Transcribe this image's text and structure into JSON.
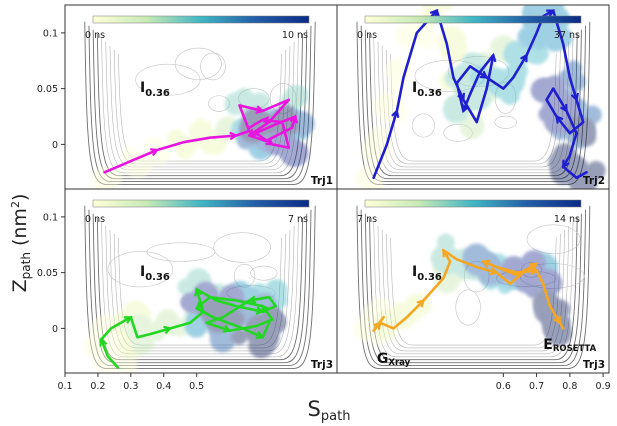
{
  "figure": {
    "ylabel_main": "Z",
    "ylabel_sub": "path",
    "ylabel_unit": " (nm",
    "ylabel_sup": "2",
    "ylabel_close": ")",
    "xlabel_main": "S",
    "xlabel_sub": "path",
    "xticks": [
      "0.1",
      "0.2",
      "0.3",
      "0.4",
      "0.5",
      "0.6",
      "0.7",
      "0.8",
      "0.9"
    ],
    "yticks": [
      "0.1",
      "0.05",
      "0"
    ]
  },
  "chart_data": [
    {
      "type": "line",
      "panel": "top-left",
      "series": [
        {
          "name": "Trj1",
          "color": "#e815e0",
          "x": [
            0.22,
            0.3,
            0.38,
            0.46,
            0.54,
            0.62,
            0.66,
            0.63,
            0.7,
            0.78,
            0.72,
            0.66,
            0.71,
            0.79,
            0.8,
            0.74,
            0.68,
            0.73,
            0.78,
            0.76,
            0.7,
            0.66
          ],
          "y": [
            -0.025,
            -0.015,
            -0.005,
            0.002,
            0.006,
            0.008,
            0.012,
            0.035,
            0.03,
            0.04,
            0.02,
            0.008,
            0.003,
            0.015,
            0.025,
            0.018,
            0.01,
            0.0,
            -0.003,
            0.02,
            0.022,
            0.015
          ]
        }
      ],
      "colorbar": {
        "min_label": "0 ns",
        "max_label": "10 ns"
      },
      "annotations": {
        "state": "I",
        "state_sub": "0.36",
        "trj": "Trj1"
      }
    },
    {
      "type": "line",
      "panel": "top-right",
      "series": [
        {
          "name": "Trj2",
          "color": "#1f1fd0",
          "x": [
            0.21,
            0.25,
            0.28,
            0.3,
            0.34,
            0.4,
            0.43,
            0.45,
            0.48,
            0.52,
            0.55,
            0.57,
            0.53,
            0.5,
            0.48,
            0.46,
            0.5,
            0.55,
            0.6,
            0.63,
            0.67,
            0.7,
            0.72,
            0.75,
            0.78,
            0.8,
            0.82,
            0.84,
            0.8,
            0.76,
            0.73,
            0.75,
            0.79,
            0.82,
            0.8,
            0.78,
            0.82,
            0.85
          ],
          "y": [
            -0.03,
            0.0,
            0.03,
            0.06,
            0.1,
            0.12,
            0.09,
            0.06,
            0.04,
            0.02,
            0.05,
            0.08,
            0.065,
            0.045,
            0.03,
            0.055,
            0.07,
            0.06,
            0.05,
            0.06,
            0.08,
            0.1,
            0.115,
            0.12,
            0.09,
            0.06,
            0.04,
            0.02,
            0.01,
            0.025,
            0.04,
            0.05,
            0.03,
            0.01,
            -0.01,
            -0.02,
            -0.03,
            -0.025
          ]
        }
      ],
      "colorbar": {
        "min_label": "0 ns",
        "max_label": "37 ns"
      },
      "annotations": {
        "state": "I",
        "state_sub": "0.36",
        "trj": "Trj2"
      }
    },
    {
      "type": "line",
      "panel": "bottom-left",
      "series": [
        {
          "name": "Trj3",
          "color": "#22d622",
          "x": [
            0.26,
            0.23,
            0.21,
            0.24,
            0.27,
            0.3,
            0.32,
            0.36,
            0.42,
            0.48,
            0.52,
            0.5,
            0.56,
            0.62,
            0.7,
            0.74,
            0.72,
            0.66,
            0.58,
            0.53,
            0.6,
            0.68,
            0.73,
            0.7,
            0.62,
            0.54,
            0.5,
            0.55,
            0.64,
            0.7,
            0.72
          ],
          "y": [
            -0.035,
            -0.025,
            -0.01,
            0.0,
            0.005,
            0.01,
            -0.008,
            -0.005,
            0.0,
            0.005,
            0.015,
            0.035,
            0.025,
            0.02,
            0.015,
            0.02,
            0.028,
            0.025,
            0.01,
            0.005,
            -0.002,
            0.002,
            0.008,
            0.02,
            0.025,
            0.028,
            0.018,
            0.01,
            0.0,
            -0.008,
            0.005
          ]
        }
      ],
      "colorbar": {
        "min_label": "0 ns",
        "max_label": "7 ns"
      },
      "annotations": {
        "state": "I",
        "state_sub": "0.36",
        "trj": "Trj3"
      }
    },
    {
      "type": "line",
      "panel": "bottom-right",
      "series": [
        {
          "name": "Trj3",
          "color": "#f5a623",
          "x": [
            0.24,
            0.21,
            0.23,
            0.27,
            0.31,
            0.36,
            0.42,
            0.44,
            0.42,
            0.46,
            0.52,
            0.58,
            0.62,
            0.66,
            0.7,
            0.64,
            0.58,
            0.54,
            0.58,
            0.64,
            0.7,
            0.72,
            0.74,
            0.77,
            0.78
          ],
          "y": [
            0.01,
            -0.002,
            0.005,
            0.0,
            0.01,
            0.025,
            0.045,
            0.06,
            0.07,
            0.062,
            0.055,
            0.05,
            0.04,
            0.05,
            0.058,
            0.048,
            0.055,
            0.06,
            0.055,
            0.05,
            0.052,
            0.04,
            0.02,
            0.005,
            0.0
          ]
        }
      ],
      "colorbar": {
        "min_label": "7 ns",
        "max_label": "14 ns"
      },
      "annotations": {
        "state": "I",
        "state_sub": "0.36",
        "trj": "Trj3",
        "g_label": "G",
        "g_sub": "Xray",
        "e_label": "E",
        "e_sub": "ROSETTA"
      }
    }
  ]
}
